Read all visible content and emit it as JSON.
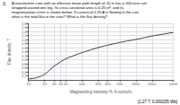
{
  "chart_data": {
    "type": "line",
    "title": "A transformer core with an effective mean path length of 10 in has a 300-turn coil\nwrapped around one leg. Its cross-sectional area is 0.25 in², and its\nmagnetization curve is shown below. If current of 0.25 A is flowing in the coil,\nwhat is the total flux in the core? What is the flux density?",
    "annotations": [
      "3.",
      "[1.27 T, 0.000205 Wb]"
    ],
    "xlabel": "Magnetizing intensity H, A-turns/m",
    "ylabel": "Flux density, T",
    "x": [
      10,
      14,
      18,
      22,
      25,
      30,
      40,
      50,
      70,
      100,
      150,
      200,
      300,
      500,
      700,
      1000,
      1500,
      2000,
      3000,
      5000
    ],
    "values": [
      0.04,
      0.1,
      0.2,
      0.35,
      0.5,
      0.67,
      0.9,
      1.05,
      1.2,
      1.35,
      1.5,
      1.6,
      1.72,
      1.85,
      1.93,
      2.0,
      2.1,
      2.17,
      2.25,
      2.35
    ],
    "color": "#444444",
    "log": "x",
    "xlim": [
      10,
      5000
    ],
    "ylim": [
      0.0,
      2.8
    ],
    "xticks": [
      10,
      20,
      30,
      40,
      50,
      100,
      200,
      300,
      500,
      1000,
      2000,
      5000
    ],
    "yticks": [
      0.2,
      0.4,
      0.6,
      0.8,
      {
        "value": 1.0,
        "label": "1.0"
      },
      1.2,
      1.4,
      1.6,
      1.8,
      {
        "value": 2.0,
        "label": "2.0"
      },
      2.2,
      2.4,
      2.6,
      2.8
    ],
    "grid": true
  }
}
